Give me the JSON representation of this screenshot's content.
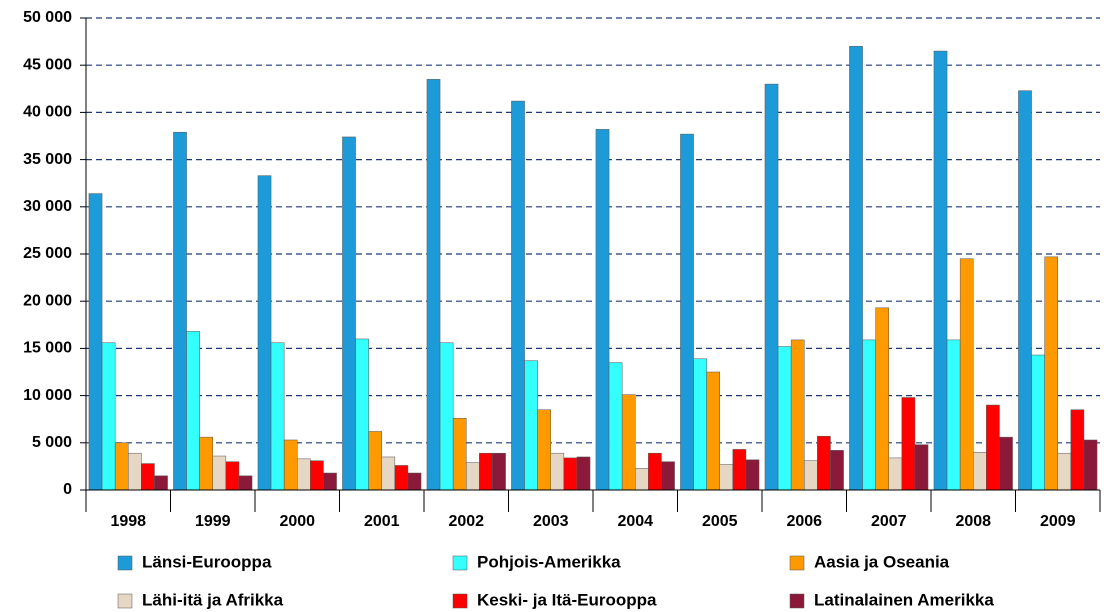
{
  "chart_data": {
    "type": "bar",
    "categories": [
      "1998",
      "1999",
      "2000",
      "2001",
      "2002",
      "2003",
      "2004",
      "2005",
      "2006",
      "2007",
      "2008",
      "2009"
    ],
    "series": [
      {
        "name": "Länsi-Eurooppa",
        "color": "#1c9bd8",
        "values": [
          31400,
          37900,
          33300,
          37400,
          43500,
          41200,
          38200,
          37700,
          43000,
          47000,
          46500,
          42300
        ]
      },
      {
        "name": "Pohjois-Amerikka",
        "color": "#33ffff",
        "values": [
          15600,
          16800,
          15600,
          16000,
          15600,
          13700,
          13500,
          13900,
          15200,
          15900,
          15900,
          14300
        ]
      },
      {
        "name": "Aasia ja Oseania",
        "color": "#ff9900",
        "values": [
          5000,
          5600,
          5300,
          6200,
          7600,
          8500,
          10100,
          12500,
          15900,
          19300,
          24500,
          24700
        ]
      },
      {
        "name": "Lähi-itä ja Afrikka",
        "color": "#e6d6c4",
        "values": [
          3900,
          3600,
          3300,
          3500,
          2900,
          3900,
          2300,
          2700,
          3100,
          3400,
          4000,
          3900
        ]
      },
      {
        "name": "Keski- ja Itä-Eurooppa",
        "color": "#ff0000",
        "values": [
          2800,
          3000,
          3100,
          2600,
          3900,
          3400,
          3900,
          4300,
          5700,
          9800,
          9000,
          8500
        ]
      },
      {
        "name": "Latinalainen Amerikka",
        "color": "#8b1a3a",
        "values": [
          1500,
          1500,
          1800,
          1800,
          3900,
          3500,
          3000,
          3200,
          4200,
          4800,
          5600,
          5300
        ]
      }
    ],
    "ylim": [
      0,
      50000
    ],
    "yticks": [
      0,
      {
        "value": 5000,
        "label": "5 000"
      },
      {
        "value": 10000,
        "label": "10 000"
      },
      {
        "value": 15000,
        "label": "15 000"
      },
      {
        "value": 20000,
        "label": "20 000"
      },
      {
        "value": 25000,
        "label": "25 000"
      },
      {
        "value": 30000,
        "label": "30 000"
      },
      {
        "value": 35000,
        "label": "35 000"
      },
      {
        "value": 40000,
        "label": "40 000"
      },
      {
        "value": 45000,
        "label": "45 000"
      },
      {
        "value": 50000,
        "label": "50 000"
      }
    ],
    "grid": true,
    "legend": "bottom"
  }
}
